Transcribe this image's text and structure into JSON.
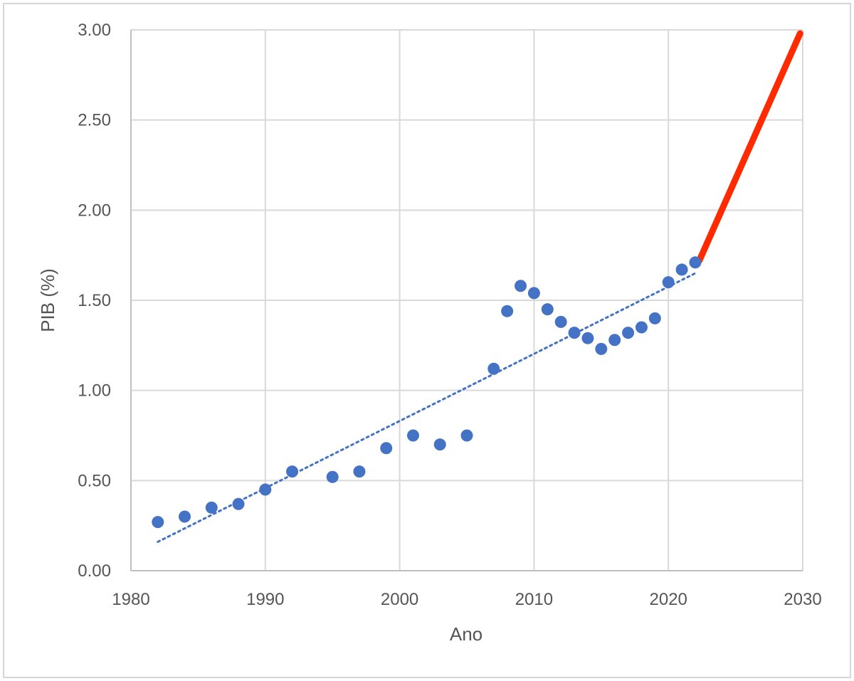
{
  "chart_data": {
    "type": "scatter",
    "title": "",
    "xlabel": "Ano",
    "ylabel": "PIB (%)",
    "xlim": [
      1980,
      2030
    ],
    "ylim": [
      0,
      3
    ],
    "x_ticks": [
      1980,
      1990,
      2000,
      2010,
      2020,
      2030
    ],
    "y_ticks": [
      0,
      0.5,
      1,
      1.5,
      2,
      2.5,
      3
    ],
    "y_tick_labels": [
      "0.00",
      "0.50",
      "1.00",
      "1.50",
      "2.00",
      "2.50",
      "3.00"
    ],
    "grid": true,
    "legend": "none",
    "series": [
      {
        "type": "scatter",
        "color": "#4472c4",
        "points": [
          {
            "x": 1982,
            "y": 0.27
          },
          {
            "x": 1984,
            "y": 0.3
          },
          {
            "x": 1986,
            "y": 0.35
          },
          {
            "x": 1988,
            "y": 0.37
          },
          {
            "x": 1990,
            "y": 0.45
          },
          {
            "x": 1992,
            "y": 0.55
          },
          {
            "x": 1995,
            "y": 0.52
          },
          {
            "x": 1997,
            "y": 0.55
          },
          {
            "x": 1999,
            "y": 0.68
          },
          {
            "x": 2001,
            "y": 0.75
          },
          {
            "x": 2003,
            "y": 0.7
          },
          {
            "x": 2005,
            "y": 0.75
          },
          {
            "x": 2007,
            "y": 1.12
          },
          {
            "x": 2008,
            "y": 1.44
          },
          {
            "x": 2009,
            "y": 1.58
          },
          {
            "x": 2010,
            "y": 1.54
          },
          {
            "x": 2011,
            "y": 1.45
          },
          {
            "x": 2012,
            "y": 1.38
          },
          {
            "x": 2013,
            "y": 1.32
          },
          {
            "x": 2014,
            "y": 1.29
          },
          {
            "x": 2015,
            "y": 1.23
          },
          {
            "x": 2016,
            "y": 1.28
          },
          {
            "x": 2017,
            "y": 1.32
          },
          {
            "x": 2018,
            "y": 1.35
          },
          {
            "x": 2019,
            "y": 1.4
          },
          {
            "x": 2020,
            "y": 1.6
          },
          {
            "x": 2021,
            "y": 1.67
          },
          {
            "x": 2022,
            "y": 1.71
          }
        ]
      },
      {
        "type": "trendline",
        "style": "dotted",
        "color": "#4472c4",
        "points": [
          {
            "x": 1982,
            "y": 0.16
          },
          {
            "x": 2022,
            "y": 1.65
          }
        ]
      },
      {
        "type": "line",
        "color": "#ff2a00",
        "points": [
          {
            "x": 2022.3,
            "y": 1.72
          },
          {
            "x": 2029.8,
            "y": 2.98
          }
        ]
      }
    ]
  }
}
